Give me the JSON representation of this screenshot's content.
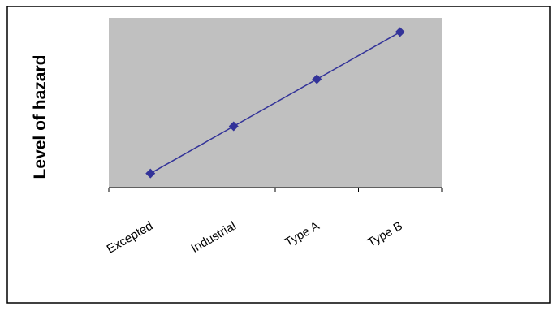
{
  "chart_data": {
    "type": "line",
    "title": "",
    "xlabel": "",
    "ylabel": "Level of hazard",
    "categories": [
      "Excepted",
      "Industrial",
      "Type A",
      "Type B"
    ],
    "series": [
      {
        "values": [
          1,
          2,
          3,
          4
        ]
      }
    ],
    "ylim": [
      0.7,
      4.3
    ],
    "y_ticks_shown": false,
    "grid": false,
    "legend": "none",
    "plot_background": "#c0c0c0",
    "series_color": "#333399",
    "marker": "diamond"
  }
}
